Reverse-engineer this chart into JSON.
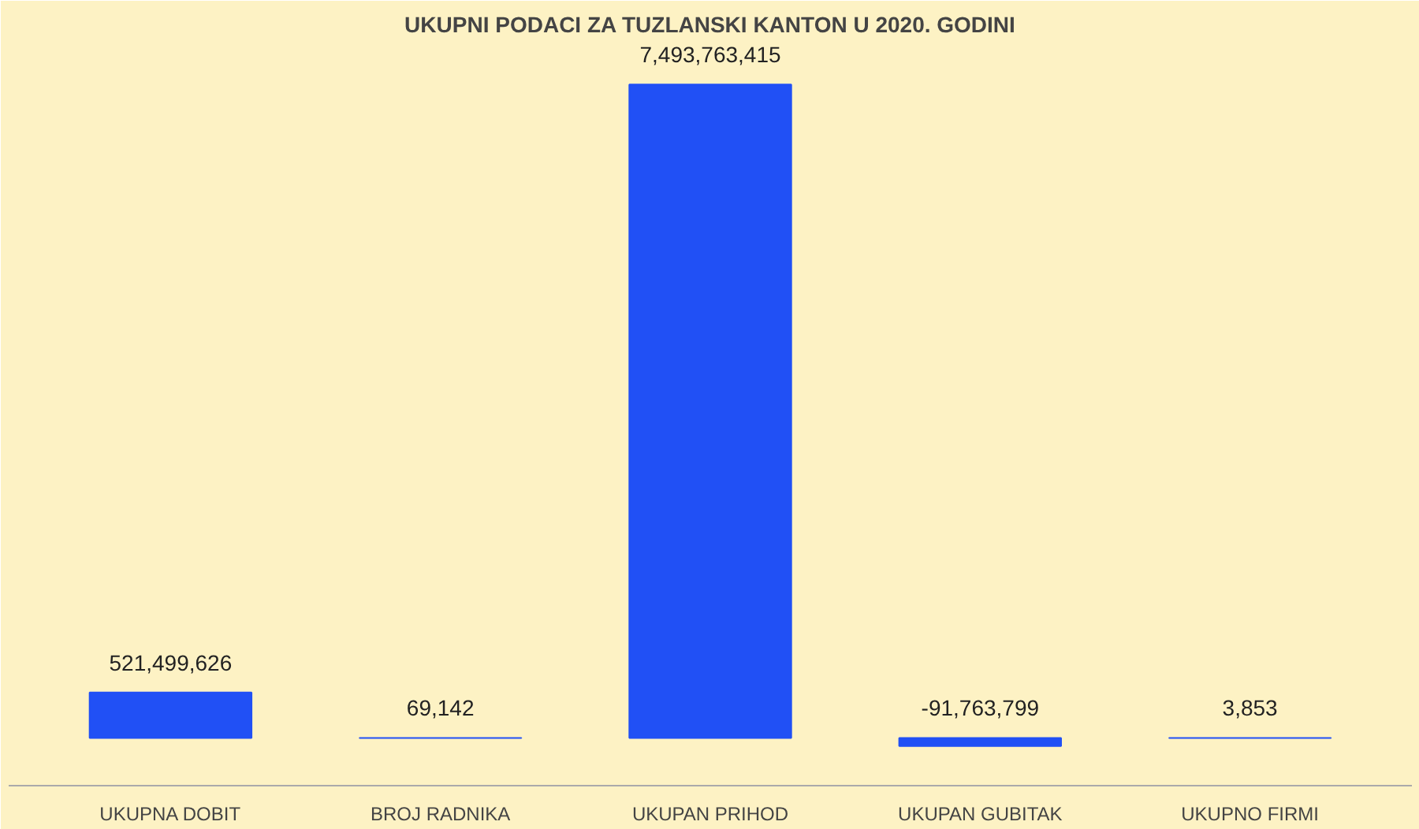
{
  "chart_data": {
    "type": "bar",
    "title": "UKUPNI PODACI ZA TUZLANSKI KANTON U 2020. GODINI",
    "categories": [
      "UKUPNA DOBIT",
      "BROJ RADNIKA",
      "UKUPAN PRIHOD",
      "UKUPAN GUBITAK",
      "UKUPNO FIRMI"
    ],
    "values": [
      521499626,
      69142,
      7493763415,
      -91763799,
      3853
    ],
    "value_labels": [
      "521,499,626",
      "69,142",
      "7,493,763,415",
      "-91,763,799",
      "3,853"
    ],
    "color": "#2150f5",
    "tick_labels": "x"
  }
}
